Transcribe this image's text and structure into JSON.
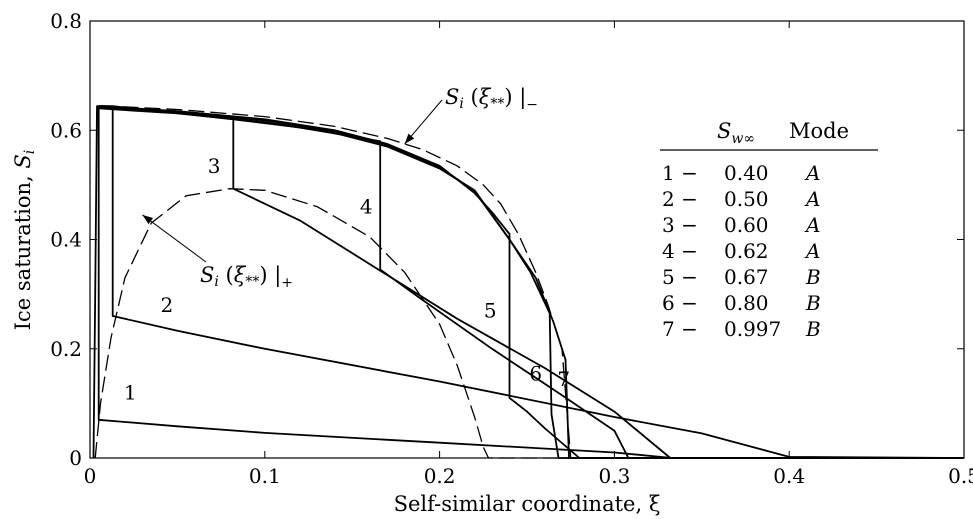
{
  "chart_data": {
    "type": "line",
    "xlabel": "Self-similar coordinate, ξ",
    "ylabel": "Ice saturation, S_i",
    "xlim": [
      0,
      0.5
    ],
    "ylim": [
      0,
      0.8
    ],
    "x_ticks": [
      "0",
      "0.1",
      "0.2",
      "0.3",
      "0.4",
      "0.5"
    ],
    "y_ticks": [
      "0",
      "0.2",
      "0.4",
      "0.6",
      "0.8"
    ],
    "grid": false,
    "series": [
      {
        "name": "1",
        "style": "solid",
        "points": [
          [
            0.002,
            0
          ],
          [
            0.003,
            0.3
          ],
          [
            0.004,
            0.644
          ],
          [
            0.005,
            0.644
          ],
          [
            0.005,
            0.07
          ],
          [
            0.05,
            0.058
          ],
          [
            0.1,
            0.046
          ],
          [
            0.2,
            0.028
          ],
          [
            0.3,
            0.01
          ],
          [
            0.333,
            0
          ],
          [
            0.5,
            0
          ]
        ]
      },
      {
        "name": "2",
        "style": "solid",
        "points": [
          [
            0.005,
            0.644
          ],
          [
            0.013,
            0.644
          ],
          [
            0.013,
            0.26
          ],
          [
            0.05,
            0.233
          ],
          [
            0.1,
            0.2
          ],
          [
            0.2,
            0.14
          ],
          [
            0.3,
            0.075
          ],
          [
            0.35,
            0.045
          ],
          [
            0.4,
            0.002
          ],
          [
            0.5,
            0
          ]
        ]
      },
      {
        "name": "3",
        "style": "solid",
        "points": [
          [
            0.013,
            0.644
          ],
          [
            0.082,
            0.62
          ],
          [
            0.082,
            0.493
          ],
          [
            0.12,
            0.435
          ],
          [
            0.17,
            0.335
          ],
          [
            0.21,
            0.255
          ],
          [
            0.26,
            0.165
          ],
          [
            0.3,
            0.085
          ],
          [
            0.332,
            0
          ],
          [
            0.5,
            0
          ]
        ]
      },
      {
        "name": "4",
        "style": "solid",
        "points": [
          [
            0.082,
            0.62
          ],
          [
            0.12,
            0.605
          ],
          [
            0.166,
            0.58
          ],
          [
            0.166,
            0.345
          ],
          [
            0.19,
            0.29
          ],
          [
            0.23,
            0.2
          ],
          [
            0.27,
            0.115
          ],
          [
            0.3,
            0.05
          ],
          [
            0.308,
            0
          ],
          [
            0.5,
            0
          ]
        ]
      },
      {
        "name": "5",
        "style": "solid",
        "points": [
          [
            0.005,
            0.644
          ],
          [
            0.05,
            0.635
          ],
          [
            0.1,
            0.62
          ],
          [
            0.14,
            0.6
          ],
          [
            0.17,
            0.575
          ],
          [
            0.2,
            0.535
          ],
          [
            0.22,
            0.485
          ],
          [
            0.23,
            0.45
          ],
          [
            0.24,
            0.41
          ],
          [
            0.24,
            0.11
          ],
          [
            0.25,
            0.085
          ],
          [
            0.26,
            0.055
          ],
          [
            0.28,
            0
          ],
          [
            0.5,
            0
          ]
        ]
      },
      {
        "name": "6",
        "style": "solid",
        "points": [
          [
            0.005,
            0.642
          ],
          [
            0.05,
            0.633
          ],
          [
            0.1,
            0.618
          ],
          [
            0.14,
            0.598
          ],
          [
            0.17,
            0.573
          ],
          [
            0.2,
            0.533
          ],
          [
            0.22,
            0.488
          ],
          [
            0.24,
            0.4
          ],
          [
            0.252,
            0.34
          ],
          [
            0.263,
            0.265
          ],
          [
            0.264,
            0.08
          ],
          [
            0.268,
            0
          ],
          [
            0.5,
            0
          ]
        ]
      },
      {
        "name": "7",
        "style": "solid",
        "points": [
          [
            0.005,
            0.64
          ],
          [
            0.05,
            0.631
          ],
          [
            0.1,
            0.615
          ],
          [
            0.14,
            0.595
          ],
          [
            0.17,
            0.57
          ],
          [
            0.2,
            0.53
          ],
          [
            0.22,
            0.49
          ],
          [
            0.24,
            0.4
          ],
          [
            0.255,
            0.33
          ],
          [
            0.265,
            0.25
          ],
          [
            0.272,
            0.18
          ],
          [
            0.274,
            0
          ],
          [
            0.5,
            0
          ]
        ]
      },
      {
        "name": "",
        "style": "dashed",
        "points": [
          [
            0.006,
            0.645
          ],
          [
            0.05,
            0.638
          ],
          [
            0.1,
            0.625
          ],
          [
            0.14,
            0.607
          ],
          [
            0.17,
            0.585
          ],
          [
            0.19,
            0.565
          ],
          [
            0.21,
            0.535
          ],
          [
            0.225,
            0.5
          ],
          [
            0.235,
            0.465
          ],
          [
            0.245,
            0.41
          ],
          [
            0.255,
            0.34
          ],
          [
            0.262,
            0.28
          ],
          [
            0.27,
            0.2
          ],
          [
            0.275,
            0
          ]
        ]
      },
      {
        "name": "",
        "style": "dashed",
        "points": [
          [
            0.003,
            0
          ],
          [
            0.006,
            0.1
          ],
          [
            0.012,
            0.22
          ],
          [
            0.02,
            0.33
          ],
          [
            0.035,
            0.43
          ],
          [
            0.055,
            0.48
          ],
          [
            0.08,
            0.493
          ],
          [
            0.1,
            0.49
          ],
          [
            0.13,
            0.46
          ],
          [
            0.16,
            0.405
          ],
          [
            0.18,
            0.34
          ],
          [
            0.2,
            0.245
          ],
          [
            0.21,
            0.17
          ],
          [
            0.22,
            0.075
          ],
          [
            0.225,
            0.02
          ],
          [
            0.228,
            0
          ],
          [
            0.3,
            0
          ]
        ]
      }
    ],
    "curve_labels": [
      {
        "text": "1",
        "x": 0.023,
        "y": 0.12
      },
      {
        "text": "2",
        "x": 0.044,
        "y": 0.28
      },
      {
        "text": "3",
        "x": 0.071,
        "y": 0.535
      },
      {
        "text": "4",
        "x": 0.158,
        "y": 0.46
      },
      {
        "text": "5",
        "x": 0.229,
        "y": 0.27
      },
      {
        "text": "6",
        "x": 0.255,
        "y": 0.155
      },
      {
        "text": "7",
        "x": 0.271,
        "y": 0.145
      }
    ],
    "annotations": {
      "upper": {
        "text": "S_i (ξ**) |−",
        "arrow_to": {
          "x": 0.18,
          "y": 0.575
        }
      },
      "lower": {
        "text": "S_i (ξ**) |+",
        "arrow_to": {
          "x": 0.03,
          "y": 0.445
        }
      }
    },
    "legend": {
      "placement": "right",
      "header": {
        "col1": "S_w∞",
        "col2": "Mode"
      },
      "rows": [
        {
          "num": "1 −",
          "swinf": "0.40",
          "mode": "A"
        },
        {
          "num": "2 −",
          "swinf": "0.50",
          "mode": "A"
        },
        {
          "num": "3 −",
          "swinf": "0.60",
          "mode": "A"
        },
        {
          "num": "4 −",
          "swinf": "0.62",
          "mode": "A"
        },
        {
          "num": "5 −",
          "swinf": "0.67",
          "mode": "B"
        },
        {
          "num": "6 −",
          "swinf": "0.80",
          "mode": "B"
        },
        {
          "num": "7 −",
          "swinf": "0.997",
          "mode": "B"
        }
      ]
    }
  }
}
